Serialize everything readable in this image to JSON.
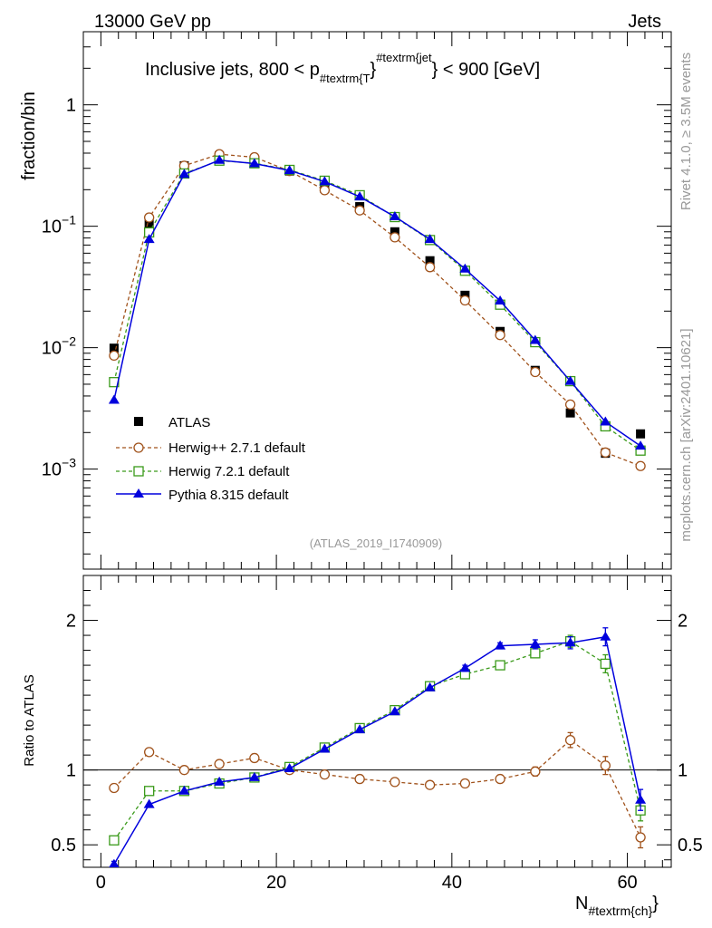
{
  "header": {
    "left": "13000 GeV pp",
    "right": "Jets"
  },
  "plot_title": {
    "main": "Inclusive jets, 800 < p",
    "sub1": "#textrm{T",
    "sup": "#textrm{jet",
    "tail": "} < 900 [GeV]",
    "close": "}"
  },
  "side_labels": {
    "rivet": "Rivet 4.1.0, ≥ 3.5M events",
    "mcplots": "mcplots.cern.ch [arXiv:2401.10621]"
  },
  "analysis_id": "(ATLAS_2019_I1740909)",
  "colors": {
    "data": "#000000",
    "herwigpp": "#a0521b",
    "herwig7": "#3a9a1a",
    "pythia": "#0000dd",
    "axis": "#000000",
    "label_gray": "#999999"
  },
  "chart_data": [
    {
      "type": "scatter",
      "panel": "main",
      "ylabel": "fraction/bin",
      "yscale": "log",
      "ylim": [
        0.00015,
        4.0
      ],
      "xlim": [
        -2,
        65
      ],
      "yticks": [
        {
          "value": 1,
          "base": "1",
          "exp": ""
        },
        {
          "value": 0.1,
          "base": "10",
          "exp": "−1"
        },
        {
          "value": 0.01,
          "base": "10",
          "exp": "−2"
        },
        {
          "value": 0.001,
          "base": "10",
          "exp": "−3"
        }
      ],
      "x": [
        1.5,
        5.5,
        9.5,
        13.5,
        17.5,
        21.5,
        25.5,
        29.5,
        33.5,
        37.5,
        41.5,
        45.5,
        49.5,
        53.5,
        57.5,
        61.5
      ],
      "series": [
        {
          "name": "ATLAS",
          "style": "data",
          "values": [
            0.0099,
            0.105,
            0.315,
            0.38,
            0.345,
            0.285,
            0.205,
            0.145,
            0.09,
            0.052,
            0.027,
            0.0136,
            0.0065,
            0.0029,
            0.00135,
            0.00195
          ]
        },
        {
          "name": "Herwig++ 2.7.1 default",
          "style": "herwigpp",
          "values": [
            0.0086,
            0.118,
            0.315,
            0.392,
            0.37,
            0.285,
            0.198,
            0.135,
            0.081,
            0.046,
            0.0245,
            0.0127,
            0.0063,
            0.0034,
            0.00137,
            0.00106
          ]
        },
        {
          "name": "Herwig 7.2.1 default",
          "style": "herwig7",
          "values": [
            0.0052,
            0.089,
            0.272,
            0.347,
            0.33,
            0.291,
            0.237,
            0.18,
            0.119,
            0.077,
            0.043,
            0.0226,
            0.0111,
            0.0053,
            0.00225,
            0.00142
          ]
        },
        {
          "name": "Pythia 8.315 default",
          "style": "pythia",
          "values": [
            0.0037,
            0.078,
            0.268,
            0.35,
            0.328,
            0.288,
            0.233,
            0.175,
            0.12,
            0.078,
            0.0445,
            0.0243,
            0.0115,
            0.0053,
            0.00245,
            0.00155
          ]
        }
      ]
    },
    {
      "type": "line",
      "panel": "ratio",
      "ylabel": "Ratio to ATLAS",
      "xlabel": "N",
      "xlabel_sub": "#textrm{ch}",
      "ylim": [
        0.35,
        2.3
      ],
      "xlim": [
        -2,
        65
      ],
      "reference": 1,
      "yticks": [
        {
          "value": 0.5,
          "label": "0.5"
        },
        {
          "value": 1,
          "label": "1"
        },
        {
          "value": 2,
          "label": "2"
        }
      ],
      "xticks": [
        {
          "value": 0,
          "label": "0"
        },
        {
          "value": 20,
          "label": "20"
        },
        {
          "value": 40,
          "label": "40"
        },
        {
          "value": 60,
          "label": "60"
        }
      ],
      "x": [
        1.5,
        5.5,
        9.5,
        13.5,
        17.5,
        21.5,
        25.5,
        29.5,
        33.5,
        37.5,
        41.5,
        45.5,
        49.5,
        53.5,
        57.5,
        61.5
      ],
      "series": [
        {
          "name": "Herwig++ 2.7.1 default",
          "style": "herwigpp",
          "values": [
            0.88,
            1.12,
            1.0,
            1.04,
            1.08,
            1.0,
            0.97,
            0.94,
            0.92,
            0.9,
            0.91,
            0.94,
            0.99,
            1.2,
            1.03,
            0.55
          ],
          "errors": [
            0.02,
            0.01,
            0.01,
            0.01,
            0.01,
            0.01,
            0.01,
            0.01,
            0.01,
            0.01,
            0.01,
            0.01,
            0.03,
            0.05,
            0.06,
            0.07
          ]
        },
        {
          "name": "Herwig 7.2.1 default",
          "style": "herwig7",
          "values": [
            0.53,
            0.86,
            0.86,
            0.91,
            0.95,
            1.02,
            1.15,
            1.28,
            1.4,
            1.56,
            1.64,
            1.7,
            1.78,
            1.86,
            1.71,
            0.73
          ],
          "errors": [
            0.02,
            0.01,
            0.01,
            0.01,
            0.01,
            0.01,
            0.01,
            0.01,
            0.01,
            0.01,
            0.02,
            0.02,
            0.03,
            0.04,
            0.06,
            0.07
          ]
        },
        {
          "name": "Pythia 8.315 default",
          "style": "pythia",
          "values": [
            0.37,
            0.77,
            0.86,
            0.92,
            0.95,
            1.01,
            1.14,
            1.27,
            1.39,
            1.55,
            1.68,
            1.83,
            1.84,
            1.85,
            1.89,
            0.8
          ],
          "errors": [
            0.02,
            0.01,
            0.01,
            0.01,
            0.01,
            0.01,
            0.01,
            0.01,
            0.01,
            0.01,
            0.02,
            0.02,
            0.03,
            0.04,
            0.06,
            0.07
          ]
        }
      ]
    }
  ]
}
